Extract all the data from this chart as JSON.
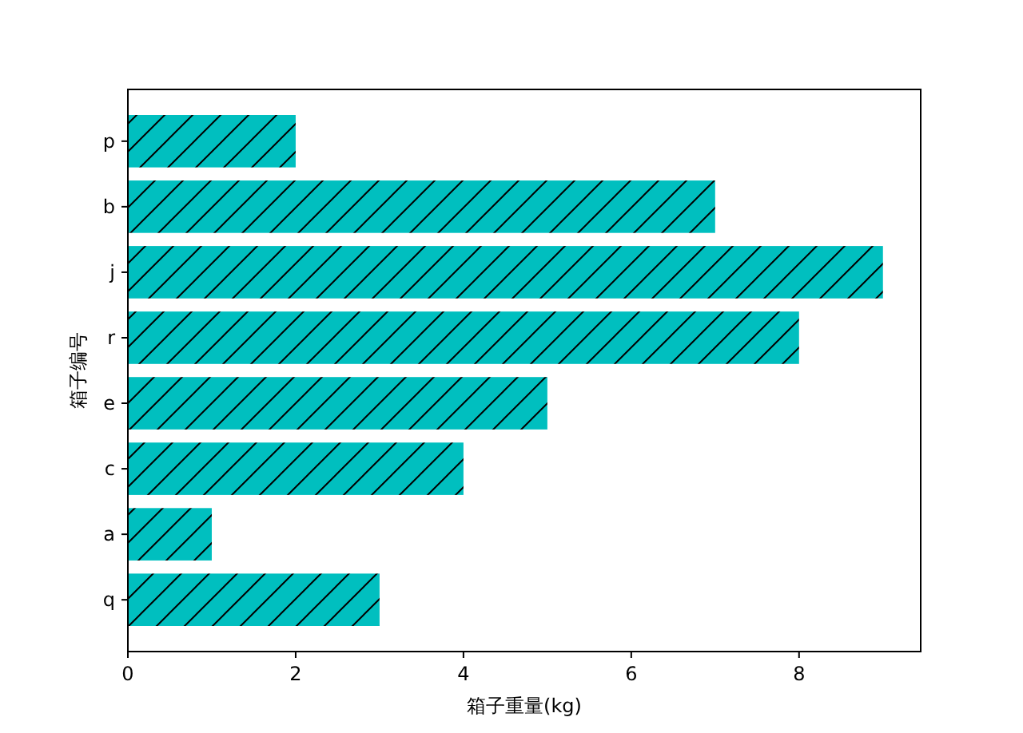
{
  "chart_data": {
    "type": "bar",
    "orientation": "horizontal",
    "categories": [
      "p",
      "b",
      "j",
      "r",
      "e",
      "c",
      "a",
      "q"
    ],
    "values": [
      2,
      7,
      9,
      8,
      5,
      4,
      1,
      3
    ],
    "color": "#00bfbf",
    "xlim": [
      0,
      9.45
    ],
    "xticks": [
      0,
      2,
      4,
      6,
      8
    ],
    "xlabel": "箱子重量(kg)",
    "ylabel": "箱子编号",
    "grid": false
  }
}
